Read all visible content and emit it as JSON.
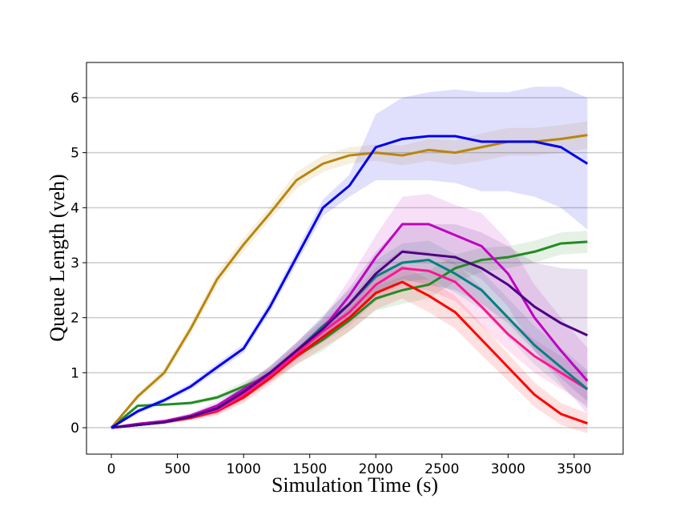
{
  "chart_data": {
    "type": "line",
    "xlabel": "Simulation Time (s)",
    "ylabel": "Queue Length (veh)",
    "x": [
      0,
      200,
      400,
      600,
      800,
      1000,
      1200,
      1400,
      1600,
      1800,
      2000,
      2200,
      2400,
      2600,
      2800,
      3000,
      3200,
      3400,
      3600
    ],
    "xlim": [
      -188,
      3870
    ],
    "xticks": [
      0,
      500,
      1000,
      1500,
      2000,
      2500,
      3000,
      3500
    ],
    "ylim": [
      -0.48,
      6.64
    ],
    "yticks": [
      0,
      1,
      2,
      3,
      4,
      5,
      6
    ],
    "grid": "y",
    "series": [
      {
        "color": "#228b22",
        "values": [
          0,
          0.4,
          0.42,
          0.45,
          0.55,
          0.75,
          0.95,
          1.3,
          1.6,
          1.95,
          2.35,
          2.5,
          2.6,
          2.9,
          3.05,
          3.1,
          3.2,
          3.35,
          3.38
        ],
        "std": [
          0,
          0.02,
          0.02,
          0.03,
          0.05,
          0.08,
          0.12,
          0.15,
          0.2,
          0.2,
          0.22,
          0.25,
          0.25,
          0.25,
          0.22,
          0.2,
          0.2,
          0.2,
          0.2
        ]
      },
      {
        "color": "#ff0000",
        "values": [
          0,
          0.05,
          0.1,
          0.18,
          0.3,
          0.55,
          0.9,
          1.3,
          1.65,
          2.0,
          2.45,
          2.65,
          2.4,
          2.1,
          1.6,
          1.1,
          0.6,
          0.25,
          0.08
        ],
        "std": [
          0,
          0.02,
          0.03,
          0.05,
          0.08,
          0.1,
          0.12,
          0.15,
          0.2,
          0.25,
          0.3,
          0.3,
          0.3,
          0.3,
          0.28,
          0.25,
          0.22,
          0.2,
          0.18
        ]
      },
      {
        "color": "#ff1493",
        "values": [
          0,
          0.05,
          0.1,
          0.2,
          0.32,
          0.6,
          0.95,
          1.35,
          1.75,
          2.1,
          2.6,
          2.9,
          2.85,
          2.65,
          2.2,
          1.7,
          1.3,
          1.0,
          0.7
        ],
        "std": [
          0,
          0.02,
          0.03,
          0.05,
          0.08,
          0.1,
          0.12,
          0.15,
          0.2,
          0.25,
          0.3,
          0.35,
          0.35,
          0.35,
          0.35,
          0.3,
          0.3,
          0.3,
          0.3
        ]
      },
      {
        "color": "#008080",
        "values": [
          0,
          0.05,
          0.1,
          0.2,
          0.35,
          0.65,
          1.0,
          1.4,
          1.85,
          2.25,
          2.75,
          3.0,
          3.05,
          2.8,
          2.5,
          2.0,
          1.5,
          1.1,
          0.7
        ],
        "std": [
          0,
          0.02,
          0.03,
          0.05,
          0.08,
          0.1,
          0.12,
          0.15,
          0.2,
          0.25,
          0.3,
          0.35,
          0.35,
          0.35,
          0.35,
          0.35,
          0.35,
          0.35,
          0.35
        ]
      },
      {
        "color": "#c000c0",
        "values": [
          0,
          0.07,
          0.12,
          0.22,
          0.4,
          0.7,
          1.0,
          1.4,
          1.8,
          2.4,
          3.1,
          3.7,
          3.7,
          3.5,
          3.3,
          2.8,
          2.0,
          1.4,
          0.85
        ],
        "std": [
          0,
          0.02,
          0.03,
          0.05,
          0.08,
          0.1,
          0.12,
          0.15,
          0.2,
          0.3,
          0.4,
          0.5,
          0.55,
          0.55,
          0.6,
          0.6,
          0.6,
          0.6,
          0.6
        ]
      },
      {
        "color": "#4b0082",
        "values": [
          0,
          0.05,
          0.1,
          0.2,
          0.35,
          0.65,
          1.0,
          1.4,
          1.8,
          2.25,
          2.8,
          3.2,
          3.15,
          3.1,
          2.9,
          2.6,
          2.2,
          1.9,
          1.68
        ],
        "std": [
          0,
          0.02,
          0.03,
          0.05,
          0.08,
          0.1,
          0.12,
          0.15,
          0.2,
          0.3,
          0.4,
          0.5,
          0.55,
          0.6,
          0.65,
          0.7,
          0.8,
          1.0,
          1.2
        ]
      },
      {
        "color": "#b8860b",
        "values": [
          0,
          0.57,
          1.0,
          1.8,
          2.7,
          3.33,
          3.9,
          4.5,
          4.8,
          4.95,
          5.0,
          4.95,
          5.05,
          5.0,
          5.1,
          5.2,
          5.2,
          5.25,
          5.32
        ],
        "std": [
          0,
          0.05,
          0.08,
          0.1,
          0.12,
          0.12,
          0.12,
          0.15,
          0.15,
          0.15,
          0.15,
          0.18,
          0.2,
          0.22,
          0.25,
          0.25,
          0.25,
          0.25,
          0.25
        ]
      },
      {
        "color": "#0000ee",
        "values": [
          0,
          0.3,
          0.5,
          0.75,
          1.1,
          1.44,
          2.2,
          3.1,
          4.0,
          4.4,
          5.1,
          5.25,
          5.3,
          5.3,
          5.2,
          5.2,
          5.2,
          5.1,
          4.8
        ],
        "std": [
          0,
          0.05,
          0.05,
          0.06,
          0.07,
          0.08,
          0.1,
          0.12,
          0.15,
          0.2,
          0.6,
          0.75,
          0.8,
          0.85,
          0.9,
          0.9,
          1.0,
          1.1,
          1.2
        ]
      }
    ]
  }
}
